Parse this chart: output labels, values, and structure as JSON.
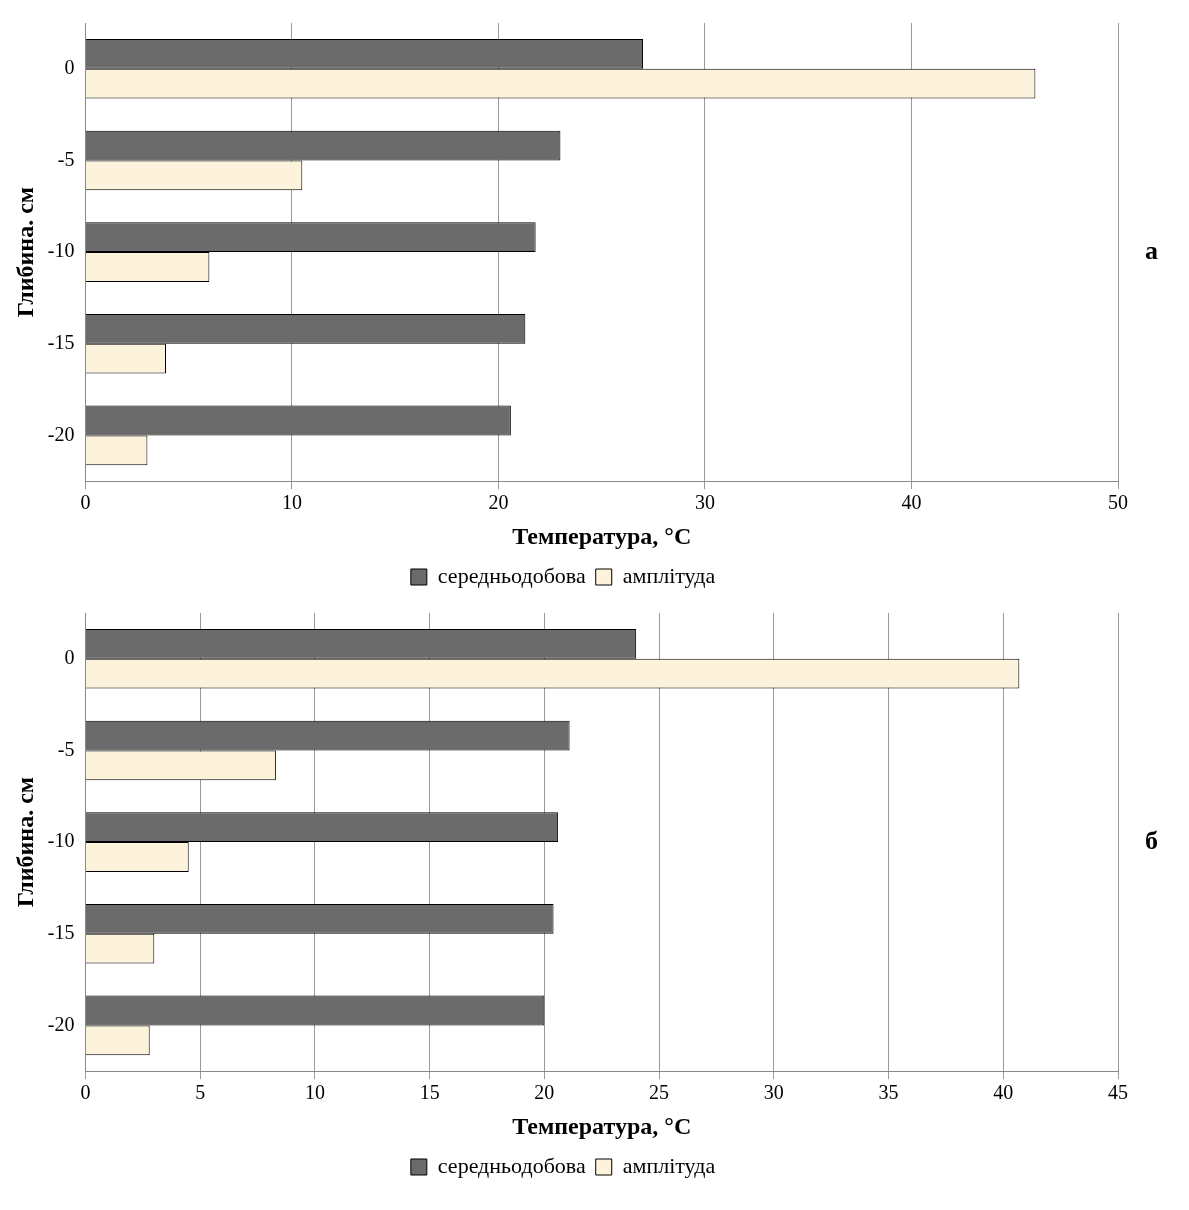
{
  "chart_data": [
    {
      "type": "bar",
      "orientation": "horizontal",
      "categories": [
        "0",
        "-5",
        "-10",
        "-15",
        "-20"
      ],
      "ylabel": "Глибина. см",
      "xlabel": "Температура, °C",
      "xlim": [
        0,
        50
      ],
      "xticks": [
        0,
        10,
        20,
        30,
        40,
        50
      ],
      "grid": "x",
      "legend": "bottom",
      "annotations": [
        "а"
      ],
      "series": [
        {
          "name": "середньодобова",
          "color": "#6b6b6b",
          "values": [
            27,
            23,
            21.8,
            21.3,
            20.6
          ]
        },
        {
          "name": "амплітуда",
          "color": "#fdf3dc",
          "values": [
            46,
            10.5,
            6,
            3.9,
            3
          ]
        }
      ]
    },
    {
      "type": "bar",
      "orientation": "horizontal",
      "categories": [
        "0",
        "-5",
        "-10",
        "-15",
        "-20"
      ],
      "ylabel": "Глибина. см",
      "xlabel": "Температура, °C",
      "xlim": [
        0,
        45
      ],
      "xticks": [
        0,
        5,
        10,
        15,
        20,
        25,
        30,
        35,
        40,
        45
      ],
      "grid": "x",
      "legend": "bottom",
      "annotations": [
        "б"
      ],
      "series": [
        {
          "name": "середньодобова",
          "color": "#6b6b6b",
          "values": [
            24,
            21.1,
            20.6,
            20.4,
            20
          ]
        },
        {
          "name": "амплітуда",
          "color": "#fdf3dc",
          "values": [
            40.7,
            8.3,
            4.5,
            3,
            2.8
          ]
        }
      ]
    }
  ]
}
